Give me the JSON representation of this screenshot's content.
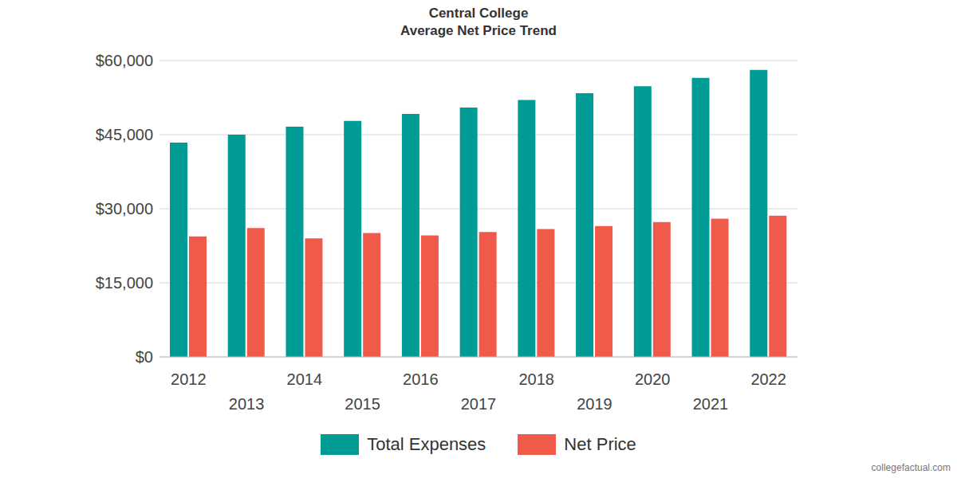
{
  "chart_data": {
    "type": "bar",
    "title": "Central College",
    "subtitle": "Average Net Price Trend",
    "categories": [
      "2012",
      "2013",
      "2014",
      "2015",
      "2016",
      "2017",
      "2018",
      "2019",
      "2020",
      "2021",
      "2022"
    ],
    "series": [
      {
        "name": "Total Expenses",
        "color": "#009b95",
        "values": [
          43400,
          45000,
          46600,
          47800,
          49200,
          50500,
          52000,
          53400,
          54800,
          56500,
          58100
        ]
      },
      {
        "name": "Net Price",
        "color": "#f05a4a",
        "values": [
          24400,
          26100,
          24000,
          25100,
          24600,
          25300,
          25900,
          26500,
          27300,
          28000,
          28600
        ]
      }
    ],
    "ylim": [
      0,
      60000
    ],
    "yticks": [
      {
        "value": 0,
        "label": "$0"
      },
      {
        "value": 15000,
        "label": "$15,000"
      },
      {
        "value": 30000,
        "label": "$30,000"
      },
      {
        "value": 45000,
        "label": "$45,000"
      },
      {
        "value": 60000,
        "label": "$60,000"
      }
    ],
    "grid": true,
    "legend": "bottom",
    "annotations": [
      "collegefactual.com"
    ]
  }
}
